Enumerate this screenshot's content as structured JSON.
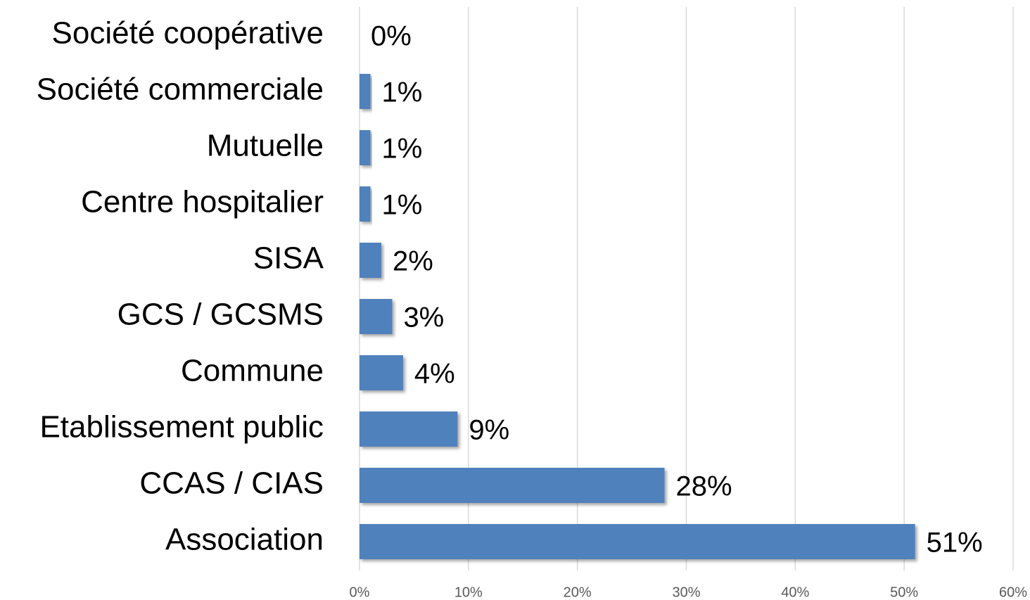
{
  "chart_data": {
    "type": "bar",
    "orientation": "horizontal",
    "categories": [
      "Société coopérative",
      "Société commerciale",
      "Mutuelle",
      "Centre hospitalier",
      "SISA",
      "GCS / GCSMS",
      "Commune",
      "Etablissement public",
      "CCAS / CIAS",
      "Association"
    ],
    "values": [
      0,
      1,
      1,
      1,
      2,
      3,
      4,
      9,
      28,
      51
    ],
    "value_labels": [
      "0%",
      "1%",
      "1%",
      "1%",
      "2%",
      "3%",
      "4%",
      "9%",
      "28%",
      "51%"
    ],
    "color": "#4f81bd",
    "xlim": [
      0,
      60
    ],
    "xticks": [
      {
        "value": 0,
        "label": "0%"
      },
      {
        "value": 10,
        "label": "10%"
      },
      {
        "value": 20,
        "label": "20%"
      },
      {
        "value": 30,
        "label": "30%"
      },
      {
        "value": 40,
        "label": "40%"
      },
      {
        "value": 50,
        "label": "50%"
      },
      {
        "value": 60,
        "label": "60%"
      }
    ],
    "grid": true
  }
}
